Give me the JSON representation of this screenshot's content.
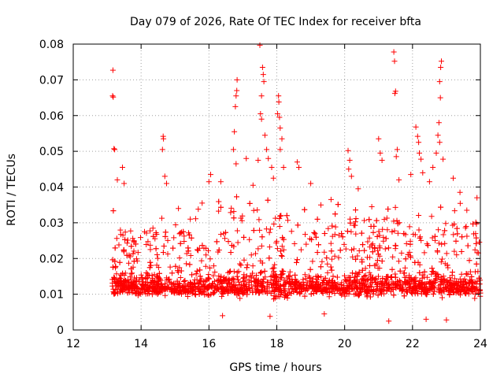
{
  "chart_data": {
    "type": "scatter",
    "title": "Day 079 of 2026, Rate Of TEC Index for receiver bfta",
    "xlabel": "GPS time / hours",
    "ylabel": "ROTI / TECUs",
    "xlim": [
      12,
      24
    ],
    "ylim": [
      0,
      0.08
    ],
    "xticks": [
      12,
      14,
      16,
      18,
      20,
      22,
      24
    ],
    "yticks": [
      0,
      0.01,
      0.02,
      0.03,
      0.04,
      0.05,
      0.06,
      0.07,
      0.08
    ],
    "xtick_labels": [
      "12",
      "14",
      "16",
      "18",
      "20",
      "22",
      "24"
    ],
    "ytick_labels": [
      "0",
      "0.01",
      "0.02",
      "0.03",
      "0.04",
      "0.05",
      "0.06",
      "0.07",
      "0.08"
    ],
    "grid": true,
    "marker": "+",
    "color": "#ff0000",
    "x_data_start": 13.15,
    "x_data_end": 24.0,
    "baseline_median": 0.012,
    "series": [
      {
        "name": "ROTI",
        "outliers": [
          {
            "x": 13.17,
            "y": 0.0727
          },
          {
            "x": 13.16,
            "y": 0.0655
          },
          {
            "x": 13.18,
            "y": 0.0652
          },
          {
            "x": 13.2,
            "y": 0.0507
          },
          {
            "x": 13.22,
            "y": 0.0505
          },
          {
            "x": 13.3,
            "y": 0.042
          },
          {
            "x": 13.45,
            "y": 0.0455
          },
          {
            "x": 13.5,
            "y": 0.041
          },
          {
            "x": 14.65,
            "y": 0.0542
          },
          {
            "x": 14.66,
            "y": 0.0535
          },
          {
            "x": 14.63,
            "y": 0.0505
          },
          {
            "x": 14.7,
            "y": 0.043
          },
          {
            "x": 14.75,
            "y": 0.041
          },
          {
            "x": 16.0,
            "y": 0.0415
          },
          {
            "x": 16.05,
            "y": 0.0435
          },
          {
            "x": 16.35,
            "y": 0.0415
          },
          {
            "x": 16.75,
            "y": 0.0555
          },
          {
            "x": 16.72,
            "y": 0.0505
          },
          {
            "x": 16.8,
            "y": 0.0465
          },
          {
            "x": 16.78,
            "y": 0.0625
          },
          {
            "x": 16.8,
            "y": 0.0655
          },
          {
            "x": 16.82,
            "y": 0.067
          },
          {
            "x": 16.83,
            "y": 0.07
          },
          {
            "x": 17.1,
            "y": 0.048
          },
          {
            "x": 17.3,
            "y": 0.0405
          },
          {
            "x": 17.45,
            "y": 0.0475
          },
          {
            "x": 17.5,
            "y": 0.0797
          },
          {
            "x": 17.52,
            "y": 0.0605
          },
          {
            "x": 17.55,
            "y": 0.0655
          },
          {
            "x": 17.58,
            "y": 0.0735
          },
          {
            "x": 17.6,
            "y": 0.0715
          },
          {
            "x": 17.62,
            "y": 0.0695
          },
          {
            "x": 17.55,
            "y": 0.059
          },
          {
            "x": 17.65,
            "y": 0.0545
          },
          {
            "x": 17.7,
            "y": 0.0505
          },
          {
            "x": 17.75,
            "y": 0.048
          },
          {
            "x": 17.85,
            "y": 0.0455
          },
          {
            "x": 17.9,
            "y": 0.0425
          },
          {
            "x": 18.05,
            "y": 0.0655
          },
          {
            "x": 18.06,
            "y": 0.0638
          },
          {
            "x": 18.02,
            "y": 0.0605
          },
          {
            "x": 18.08,
            "y": 0.0595
          },
          {
            "x": 18.1,
            "y": 0.0565
          },
          {
            "x": 18.15,
            "y": 0.0535
          },
          {
            "x": 18.1,
            "y": 0.0505
          },
          {
            "x": 18.2,
            "y": 0.0455
          },
          {
            "x": 18.6,
            "y": 0.047
          },
          {
            "x": 18.65,
            "y": 0.0455
          },
          {
            "x": 19.0,
            "y": 0.041
          },
          {
            "x": 20.1,
            "y": 0.0502
          },
          {
            "x": 20.15,
            "y": 0.0475
          },
          {
            "x": 20.12,
            "y": 0.045
          },
          {
            "x": 20.2,
            "y": 0.043
          },
          {
            "x": 20.4,
            "y": 0.0395
          },
          {
            "x": 21.0,
            "y": 0.0535
          },
          {
            "x": 21.05,
            "y": 0.0495
          },
          {
            "x": 21.1,
            "y": 0.0475
          },
          {
            "x": 21.45,
            "y": 0.0778
          },
          {
            "x": 21.47,
            "y": 0.0752
          },
          {
            "x": 21.5,
            "y": 0.0668
          },
          {
            "x": 21.48,
            "y": 0.0662
          },
          {
            "x": 21.55,
            "y": 0.0505
          },
          {
            "x": 21.52,
            "y": 0.0485
          },
          {
            "x": 21.6,
            "y": 0.042
          },
          {
            "x": 21.95,
            "y": 0.0435
          },
          {
            "x": 22.1,
            "y": 0.0568
          },
          {
            "x": 22.15,
            "y": 0.0542
          },
          {
            "x": 22.18,
            "y": 0.0525
          },
          {
            "x": 22.2,
            "y": 0.0495
          },
          {
            "x": 22.25,
            "y": 0.0478
          },
          {
            "x": 22.3,
            "y": 0.044
          },
          {
            "x": 22.5,
            "y": 0.0415
          },
          {
            "x": 22.6,
            "y": 0.0455
          },
          {
            "x": 22.85,
            "y": 0.0752
          },
          {
            "x": 22.83,
            "y": 0.0735
          },
          {
            "x": 22.8,
            "y": 0.0695
          },
          {
            "x": 22.82,
            "y": 0.065
          },
          {
            "x": 22.78,
            "y": 0.058
          },
          {
            "x": 22.75,
            "y": 0.0545
          },
          {
            "x": 22.8,
            "y": 0.0525
          },
          {
            "x": 22.7,
            "y": 0.0495
          },
          {
            "x": 22.9,
            "y": 0.0478
          },
          {
            "x": 23.2,
            "y": 0.0425
          },
          {
            "x": 23.4,
            "y": 0.0385
          },
          {
            "x": 23.9,
            "y": 0.037
          },
          {
            "x": 14.35,
            "y": 0.0285
          },
          {
            "x": 14.1,
            "y": 0.0275
          },
          {
            "x": 15.1,
            "y": 0.034
          },
          {
            "x": 15.45,
            "y": 0.031
          },
          {
            "x": 15.8,
            "y": 0.0355
          },
          {
            "x": 19.3,
            "y": 0.035
          },
          {
            "x": 19.6,
            "y": 0.0365
          },
          {
            "x": 20.8,
            "y": 0.0345
          },
          {
            "x": 23.6,
            "y": 0.0335
          },
          {
            "x": 21.3,
            "y": 0.0025
          },
          {
            "x": 22.4,
            "y": 0.003
          },
          {
            "x": 23.0,
            "y": 0.0028
          },
          {
            "x": 16.4,
            "y": 0.004
          },
          {
            "x": 19.4,
            "y": 0.0045
          },
          {
            "x": 17.8,
            "y": 0.0038
          }
        ]
      }
    ]
  }
}
